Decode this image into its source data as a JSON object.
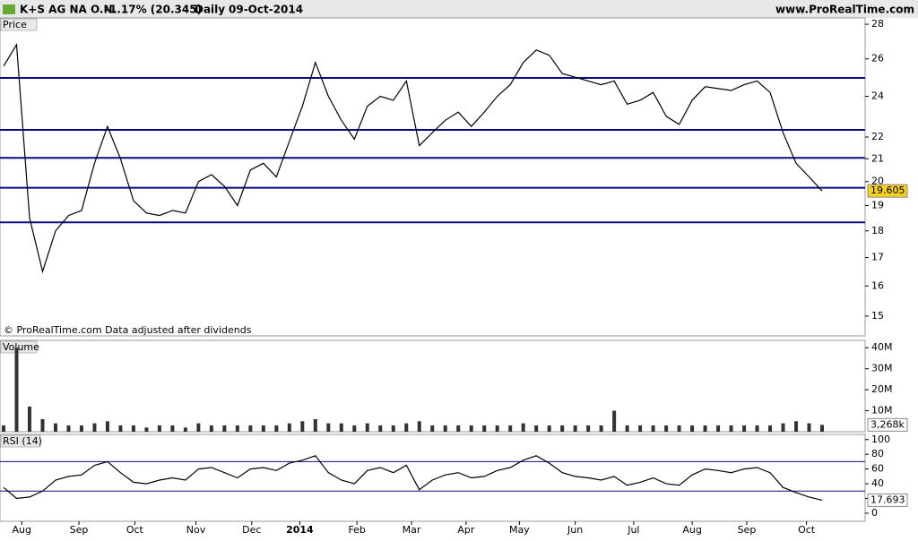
{
  "header": {
    "instrument": "K+S AG NA O.N.",
    "change": "-1.17% (20.345)",
    "period": "Daily",
    "date": "09-Oct-2014",
    "site": "www.ProRealTime.com"
  },
  "chart_data": [
    {
      "type": "line",
      "panel_label": "Price",
      "annotation": "© ProRealTime.com  Data adjusted after dividends",
      "color": "#000000",
      "log_scale": true,
      "values": [
        25.6,
        26.8,
        18.5,
        16.5,
        18.0,
        18.6,
        18.8,
        20.8,
        22.5,
        21.0,
        19.2,
        18.7,
        18.6,
        18.8,
        18.7,
        20.0,
        20.3,
        19.8,
        19.0,
        20.5,
        20.8,
        20.2,
        21.8,
        23.5,
        25.8,
        24.0,
        22.8,
        21.9,
        23.5,
        24.0,
        23.8,
        24.8,
        21.6,
        22.2,
        22.8,
        23.2,
        22.5,
        23.2,
        24.0,
        24.6,
        25.8,
        26.5,
        26.2,
        25.2,
        25.0,
        24.8,
        24.6,
        24.8,
        23.6,
        23.8,
        24.2,
        23.0,
        22.6,
        23.8,
        24.5,
        24.4,
        24.3,
        24.6,
        24.8,
        24.2,
        22.2,
        20.8,
        20.2,
        19.605
      ],
      "hlines": [
        24.96,
        22.34,
        21.04,
        19.74,
        18.33
      ],
      "hline_color": "#0a0a80",
      "ylim": [
        14.38,
        28.38
      ],
      "yticks": [
        15,
        16,
        17,
        18,
        19,
        20,
        21,
        22,
        24,
        26,
        28
      ]
    },
    {
      "type": "bar",
      "panel_label": "Volume",
      "color": "#333333",
      "values": [
        3,
        40,
        12,
        6,
        4,
        3,
        3,
        4,
        5,
        3,
        3,
        2,
        3,
        3,
        2,
        4,
        3,
        3,
        3,
        3,
        3,
        3,
        4,
        5,
        6,
        4,
        4,
        3,
        4,
        3,
        3,
        4,
        5,
        3,
        3,
        3,
        3,
        3,
        3,
        3,
        4,
        3,
        3,
        3,
        3,
        3,
        3,
        10,
        3,
        3,
        3,
        3,
        3,
        3,
        3,
        3,
        3,
        3,
        3,
        3,
        4,
        5,
        4,
        3.268
      ],
      "value_labels": [
        null,
        null,
        null,
        null,
        null,
        null,
        null,
        null,
        null,
        null,
        null,
        null,
        null,
        null,
        null,
        null,
        null,
        null,
        null,
        null,
        null,
        null,
        null,
        null,
        null,
        null,
        null,
        null,
        null,
        null,
        null,
        null,
        null,
        null,
        null,
        null,
        null,
        null,
        null,
        null,
        null,
        null,
        null,
        null,
        null,
        null,
        null,
        null,
        null,
        null,
        null,
        null,
        null,
        null,
        null,
        null,
        null,
        null,
        null,
        null,
        null,
        null,
        null,
        "3,268k"
      ],
      "ylim": [
        0,
        43.5
      ],
      "yticks": [
        {
          "value": 10,
          "label": "10M"
        },
        {
          "value": 20,
          "label": "20M"
        },
        {
          "value": 30,
          "label": "30M"
        },
        {
          "value": 40,
          "label": "40M"
        }
      ]
    },
    {
      "type": "line",
      "panel_label": "RSI (14)",
      "color": "#000000",
      "values": [
        35,
        20,
        22,
        30,
        45,
        50,
        52,
        65,
        70,
        55,
        42,
        40,
        45,
        48,
        45,
        60,
        62,
        55,
        48,
        60,
        62,
        58,
        68,
        72,
        78,
        55,
        45,
        40,
        58,
        62,
        55,
        65,
        32,
        45,
        52,
        55,
        48,
        50,
        58,
        62,
        72,
        78,
        68,
        55,
        50,
        48,
        45,
        50,
        38,
        42,
        48,
        40,
        38,
        52,
        60,
        58,
        55,
        60,
        62,
        55,
        35,
        28,
        22,
        17.693
      ],
      "hlines": [
        70,
        30
      ],
      "hline_color": "#0a0a80",
      "ylim": [
        -11,
        107
      ],
      "yticks": [
        0,
        20,
        40,
        60,
        80,
        100
      ],
      "xlim": [
        0,
        63
      ],
      "xticks": [
        {
          "value": 1.4,
          "label": "Aug"
        },
        {
          "value": 5.8,
          "label": "Sep"
        },
        {
          "value": 10.1,
          "label": "Oct"
        },
        {
          "value": 14.8,
          "label": "Nov"
        },
        {
          "value": 19.1,
          "label": "Dec"
        },
        {
          "value": 22.8,
          "label": "2014"
        },
        {
          "value": 27.2,
          "label": "Feb"
        },
        {
          "value": 31.4,
          "label": "Mar"
        },
        {
          "value": 35.6,
          "label": "Apr"
        },
        {
          "value": 39.7,
          "label": "May"
        },
        {
          "value": 44,
          "label": "Jun"
        },
        {
          "value": 48.5,
          "label": "Jul"
        },
        {
          "value": 53,
          "label": "Aug"
        },
        {
          "value": 57.2,
          "label": "Sep"
        },
        {
          "value": 61.8,
          "label": "Oct"
        }
      ]
    }
  ]
}
